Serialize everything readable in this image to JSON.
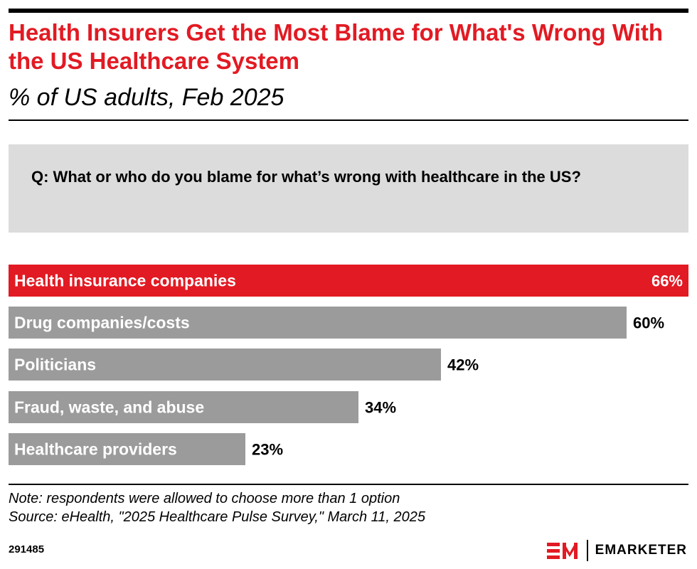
{
  "header": {
    "title": "Health Insurers Get the Most Blame for What's Wrong With the US Healthcare System",
    "subtitle": "% of US adults, Feb 2025"
  },
  "question": "Q: What or who do you blame for what’s wrong with healthcare in the US?",
  "chart_data": {
    "type": "bar",
    "orientation": "horizontal",
    "title": "Health Insurers Get the Most Blame for What's Wrong With the US Healthcare System",
    "subtitle": "% of US adults, Feb 2025",
    "categories": [
      "Health insurance companies",
      "Drug companies/costs",
      "Politicians",
      "Fraud, waste, and abuse",
      "Healthcare providers"
    ],
    "values": [
      66,
      60,
      42,
      34,
      23
    ],
    "value_labels": [
      "66%",
      "60%",
      "42%",
      "34%",
      "23%"
    ],
    "unit": "%",
    "xlim": [
      0,
      66
    ],
    "highlight_index": 0,
    "colors": {
      "highlight": "#e21a23",
      "default": "#9b9b9b",
      "label_on_bar": "#ffffff",
      "value_text": "#000000"
    },
    "grid": false,
    "legend": "none"
  },
  "footer": {
    "note": "Note: respondents were allowed to choose more than 1 option",
    "source": "Source: eHealth, \"2025 Healthcare Pulse Survey,\" March 11, 2025",
    "chart_id": "291485",
    "brand_mark": "EM",
    "brand_name": "EMARKETER",
    "brand_color": "#e21a23"
  }
}
